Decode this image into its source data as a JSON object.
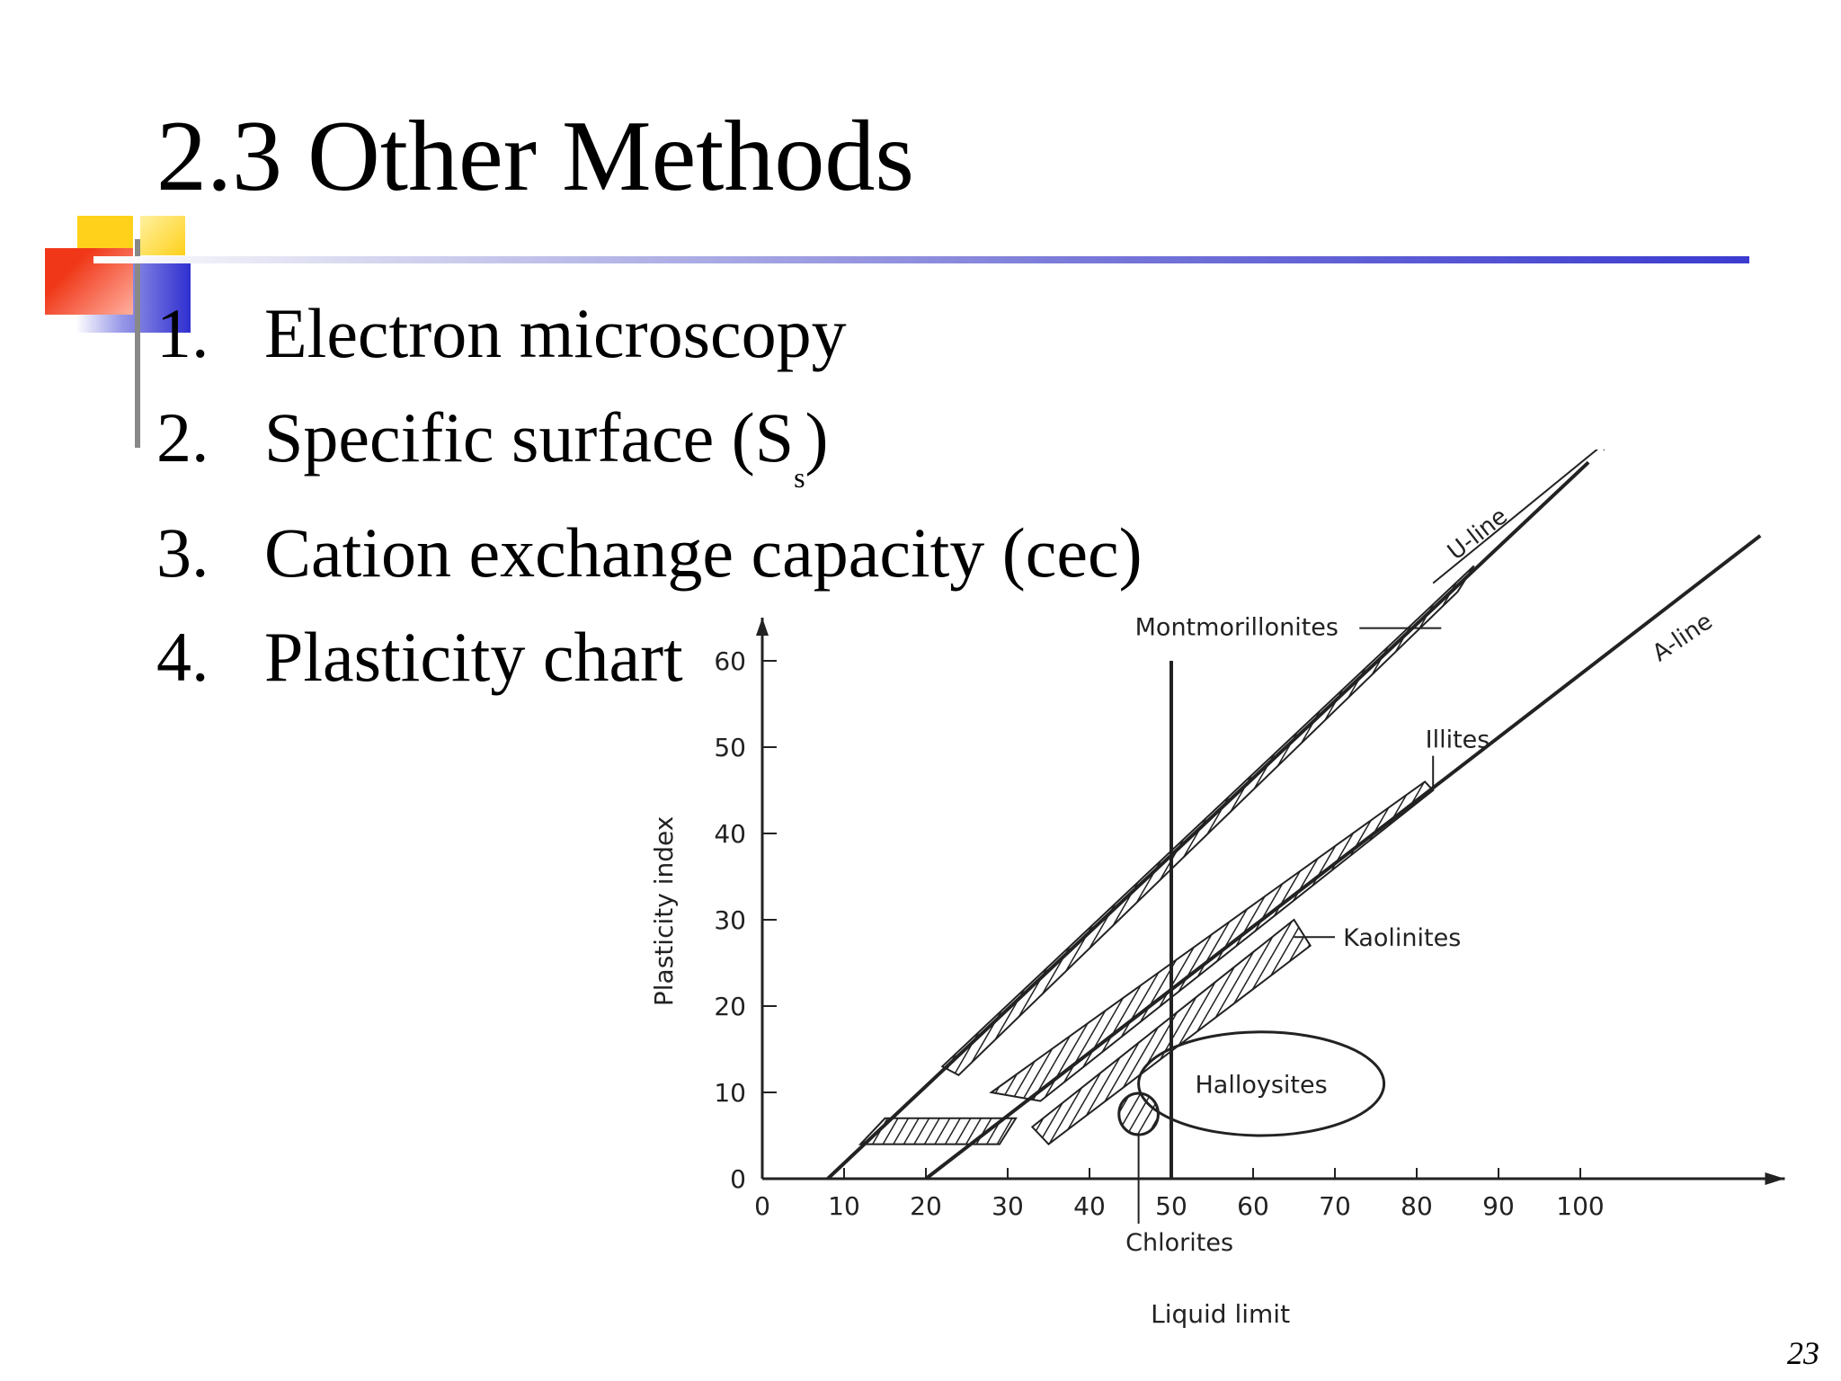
{
  "slide": {
    "title": "2.3 Other Methods",
    "page_number": "23",
    "bullets": [
      {
        "num": "1.",
        "text": "Electron microscopy"
      },
      {
        "num": "2.",
        "text": "Specific surface (S",
        "sub": "s",
        "tail": ")"
      },
      {
        "num": "3.",
        "text": "Cation exchange capacity (cec)"
      },
      {
        "num": "4.",
        "text": "Plasticity chart"
      }
    ],
    "colors": {
      "accent_blue": "#3b3bd0",
      "deco_yellow": "#ffd700",
      "deco_red": "#f04020",
      "deco_blue": "#3030cc"
    }
  },
  "chart_data": {
    "type": "line",
    "xlabel": "Liquid limit",
    "ylabel": "Plasticity index",
    "xlim": [
      0,
      125
    ],
    "ylim": [
      0,
      65
    ],
    "xticks": [
      0,
      10,
      20,
      30,
      40,
      50,
      60,
      70,
      80,
      90,
      100
    ],
    "yticks": [
      0,
      10,
      20,
      30,
      40,
      50,
      60
    ],
    "lines": [
      {
        "name": "U-line",
        "points": [
          [
            8,
            0
          ],
          [
            101,
            83
          ]
        ]
      },
      {
        "name": "A-line",
        "points": [
          [
            20,
            0
          ],
          [
            122,
            74.5
          ]
        ]
      },
      {
        "name": "",
        "points": [
          [
            50,
            0
          ],
          [
            50,
            60
          ]
        ]
      }
    ],
    "regions": [
      {
        "name": "Montmorillonites",
        "points": [
          [
            22,
            13
          ],
          [
            87,
            71
          ],
          [
            85,
            68
          ],
          [
            24,
            12
          ]
        ]
      },
      {
        "name": "Illites",
        "points": [
          [
            28,
            10
          ],
          [
            81,
            46
          ],
          [
            82,
            45
          ],
          [
            34,
            9
          ]
        ]
      },
      {
        "name": "Kaolinites",
        "points": [
          [
            33,
            6
          ],
          [
            65,
            30
          ],
          [
            67,
            27
          ],
          [
            35,
            4
          ]
        ]
      },
      {
        "name": "Chlorites",
        "ellipse": {
          "cx": 46,
          "cy": 7.5,
          "rx": 2.4,
          "ry": 2.4
        }
      },
      {
        "name": "Halloysites",
        "ellipse": {
          "cx": 61,
          "cy": 11,
          "rx": 15,
          "ry": 6
        }
      }
    ],
    "annotations": [
      {
        "text": "U-line"
      },
      {
        "text": "A-line"
      },
      {
        "text": "Montmorillonites"
      },
      {
        "text": "Illites"
      },
      {
        "text": "Kaolinites"
      },
      {
        "text": "Halloysites"
      },
      {
        "text": "Chlorites"
      }
    ]
  }
}
